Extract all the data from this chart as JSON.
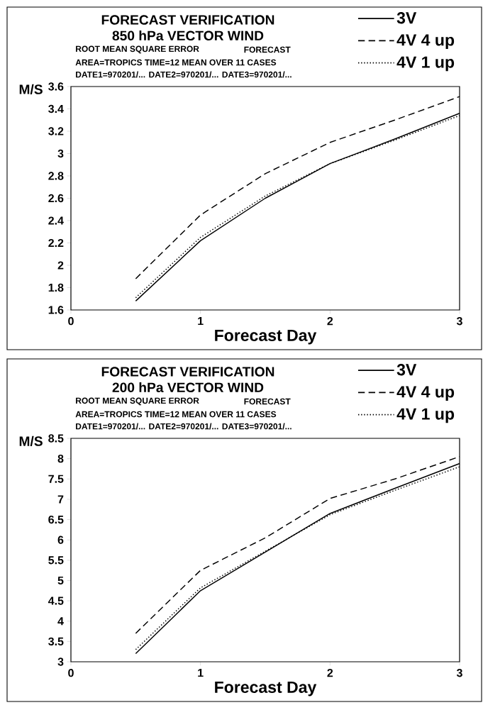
{
  "chart_data": [
    {
      "type": "line",
      "title": "FORECAST VERIFICATION",
      "subtitle": "850 hPa VECTOR WIND",
      "xlabel": "Forecast Day",
      "ylabel": "M/S",
      "annotations": [
        "ROOT MEAN SQUARE ERROR",
        "FORECAST",
        "AREA=TROPICS   TIME=12   MEAN OVER  11 CASES",
        "DATE1=970201/... DATE2=970201/... DATE3=970201/..."
      ],
      "x": [
        0.5,
        1,
        1.5,
        2,
        2.5,
        3
      ],
      "series": [
        {
          "name": "3V",
          "color": "#000000",
          "line_style": "solid",
          "values": [
            1.68,
            2.22,
            2.6,
            2.91,
            3.13,
            3.36
          ]
        },
        {
          "name": "4V 4 up",
          "color": "#000000",
          "line_style": "dashed",
          "values": [
            1.88,
            2.45,
            2.82,
            3.1,
            3.3,
            3.51
          ]
        },
        {
          "name": "4V 1 up",
          "color": "#000000",
          "line_style": "dotted",
          "values": [
            1.71,
            2.25,
            2.62,
            2.91,
            3.12,
            3.34
          ]
        }
      ],
      "xlim": [
        0,
        3
      ],
      "xticks": [
        0,
        1,
        2,
        3
      ],
      "ylim": [
        1.6,
        3.6
      ],
      "yticks": [
        1.6,
        1.8,
        2,
        2.2,
        2.4,
        2.6,
        2.8,
        3,
        3.2,
        3.4,
        3.6
      ],
      "legend": "top right",
      "grid": false
    },
    {
      "type": "line",
      "title": "FORECAST VERIFICATION",
      "subtitle": "200 hPa VECTOR WIND",
      "xlabel": "Forecast Day",
      "ylabel": "M/S",
      "annotations": [
        "ROOT MEAN SQUARE ERROR",
        "FORECAST",
        "AREA=TROPICS   TIME=12   MEAN OVER  11 CASES",
        "DATE1=970201/... DATE2=970201/... DATE3=970201/..."
      ],
      "x": [
        0.5,
        1,
        1.5,
        2,
        2.5,
        3
      ],
      "series": [
        {
          "name": "3V",
          "color": "#000000",
          "line_style": "solid",
          "values": [
            3.2,
            4.75,
            5.7,
            6.65,
            7.27,
            7.88
          ]
        },
        {
          "name": "4V 4 up",
          "color": "#000000",
          "line_style": "dashed",
          "values": [
            3.7,
            5.25,
            6.05,
            7.02,
            7.5,
            8.05
          ]
        },
        {
          "name": "4V 1 up",
          "color": "#000000",
          "line_style": "dotted",
          "values": [
            3.3,
            4.82,
            5.72,
            6.62,
            7.22,
            7.8
          ]
        }
      ],
      "xlim": [
        0,
        3
      ],
      "xticks": [
        0,
        1,
        2,
        3
      ],
      "ylim": [
        3,
        8.5
      ],
      "yticks": [
        3,
        3.5,
        4,
        4.5,
        5,
        5.5,
        6,
        6.5,
        7,
        7.5,
        8,
        8.5
      ],
      "legend": "top right",
      "grid": false
    }
  ]
}
